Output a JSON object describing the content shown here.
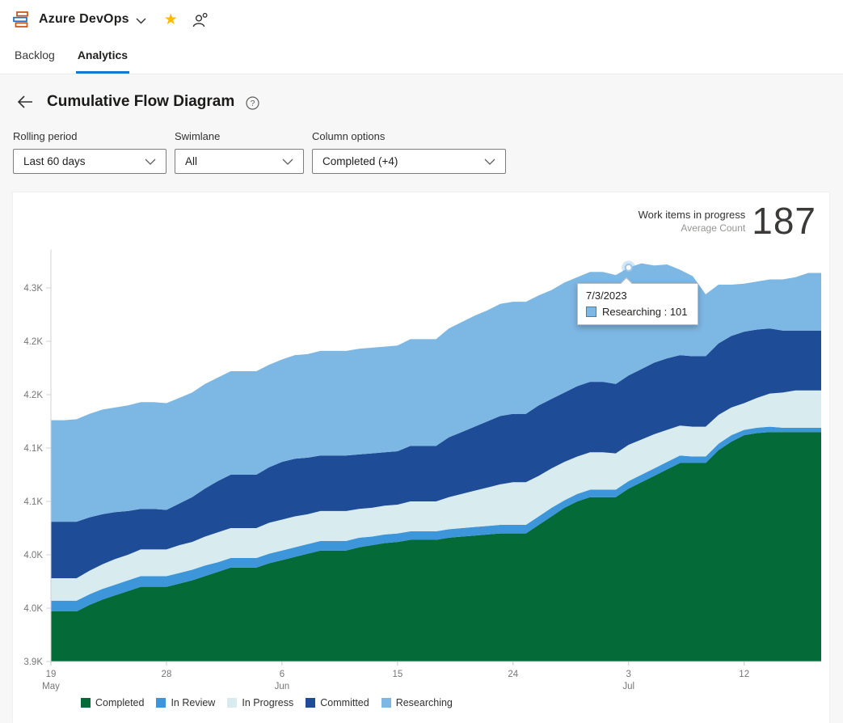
{
  "header": {
    "product": "Azure DevOps"
  },
  "tabs": {
    "backlog": "Backlog",
    "analytics": "Analytics"
  },
  "page": {
    "title": "Cumulative Flow Diagram"
  },
  "filters": {
    "rolling_period": {
      "label": "Rolling period",
      "value": "Last 60 days"
    },
    "swimlane": {
      "label": "Swimlane",
      "value": "All"
    },
    "column_options": {
      "label": "Column options",
      "value": "Completed (+4)"
    }
  },
  "stats": {
    "title": "Work items in progress",
    "subtitle": "Average Count",
    "value": "187"
  },
  "tooltip": {
    "date": "7/3/2023",
    "series": "Researching",
    "value": 101,
    "label": "Researching : 101"
  },
  "legend": [
    {
      "label": "Completed",
      "color": "#046a38"
    },
    {
      "label": "In Review",
      "color": "#3c96d9"
    },
    {
      "label": "In Progress",
      "color": "#d8ebee"
    },
    {
      "label": "Committed",
      "color": "#1e4c96"
    },
    {
      "label": "Researching",
      "color": "#7db7e4"
    }
  ],
  "chart_data": {
    "type": "area",
    "stacked": true,
    "grid": false,
    "legend_position": "bottom",
    "title": "Cumulative Flow Diagram",
    "xlabel": "",
    "ylabel": "",
    "dates": [
      "5/19",
      "5/20",
      "5/21",
      "5/22",
      "5/23",
      "5/24",
      "5/25",
      "5/26",
      "5/27",
      "5/28",
      "5/29",
      "5/30",
      "5/31",
      "6/1",
      "6/2",
      "6/3",
      "6/4",
      "6/5",
      "6/6",
      "6/7",
      "6/8",
      "6/9",
      "6/10",
      "6/11",
      "6/12",
      "6/13",
      "6/14",
      "6/15",
      "6/16",
      "6/17",
      "6/18",
      "6/19",
      "6/20",
      "6/21",
      "6/22",
      "6/23",
      "6/24",
      "6/25",
      "6/26",
      "6/27",
      "6/28",
      "6/29",
      "6/30",
      "7/1",
      "7/2",
      "7/3",
      "7/4",
      "7/5",
      "7/6",
      "7/7",
      "7/8",
      "7/9",
      "7/10",
      "7/11",
      "7/12",
      "7/13",
      "7/14",
      "7/15",
      "7/16",
      "7/17",
      "7/18"
    ],
    "series": [
      {
        "name": "Completed",
        "color": "#046a38",
        "absolute": true,
        "values": [
          3997,
          3997,
          3997,
          4003,
          4008,
          4012,
          4016,
          4020,
          4020,
          4020,
          4023,
          4026,
          4030,
          4034,
          4038,
          4038,
          4038,
          4042,
          4045,
          4048,
          4051,
          4054,
          4054,
          4054,
          4057,
          4059,
          4061,
          4062,
          4064,
          4064,
          4064,
          4066,
          4067,
          4068,
          4069,
          4070,
          4070,
          4070,
          4078,
          4086,
          4094,
          4100,
          4104,
          4104,
          4104,
          4112,
          4118,
          4124,
          4130,
          4136,
          4136,
          4136,
          4148,
          4156,
          4162,
          4164,
          4165,
          4165,
          4165,
          4165,
          4165
        ]
      },
      {
        "name": "In Review",
        "color": "#3c96d9",
        "absolute": false,
        "values": [
          10,
          10,
          10,
          10,
          10,
          10,
          10,
          10,
          10,
          10,
          10,
          10,
          10,
          9,
          9,
          9,
          9,
          9,
          9,
          9,
          9,
          9,
          9,
          9,
          9,
          8,
          8,
          8,
          8,
          8,
          8,
          8,
          8,
          8,
          8,
          8,
          8,
          8,
          8,
          8,
          7,
          7,
          7,
          7,
          7,
          7,
          7,
          7,
          7,
          7,
          6,
          6,
          6,
          6,
          5,
          5,
          5,
          4,
          4,
          4,
          4
        ]
      },
      {
        "name": "In Progress",
        "color": "#d8ebee",
        "absolute": false,
        "values": [
          21,
          21,
          21,
          22,
          23,
          24,
          24,
          25,
          25,
          25,
          26,
          26,
          27,
          28,
          28,
          28,
          28,
          29,
          29,
          29,
          28,
          28,
          28,
          28,
          27,
          27,
          27,
          27,
          28,
          28,
          28,
          30,
          32,
          34,
          36,
          38,
          40,
          40,
          38,
          37,
          36,
          35,
          35,
          35,
          34,
          34,
          33,
          32,
          30,
          28,
          28,
          28,
          27,
          26,
          25,
          28,
          31,
          33,
          35,
          35,
          35
        ]
      },
      {
        "name": "Committed",
        "color": "#1e4c96",
        "absolute": false,
        "values": [
          53,
          53,
          53,
          50,
          47,
          44,
          41,
          38,
          38,
          37,
          39,
          42,
          45,
          48,
          50,
          50,
          50,
          52,
          54,
          54,
          53,
          52,
          52,
          52,
          51,
          51,
          50,
          50,
          52,
          52,
          52,
          56,
          58,
          60,
          62,
          64,
          64,
          64,
          66,
          65,
          65,
          66,
          66,
          66,
          65,
          65,
          66,
          67,
          67,
          66,
          66,
          66,
          67,
          67,
          67,
          64,
          61,
          58,
          56,
          56,
          56
        ]
      },
      {
        "name": "Researching",
        "color": "#7db7e4",
        "absolute": false,
        "values": [
          95,
          95,
          96,
          97,
          98,
          98,
          99,
          100,
          100,
          100,
          99,
          98,
          98,
          97,
          97,
          97,
          97,
          96,
          96,
          97,
          97,
          98,
          98,
          98,
          99,
          99,
          99,
          99,
          100,
          100,
          100,
          102,
          103,
          104,
          104,
          105,
          105,
          105,
          103,
          102,
          103,
          102,
          103,
          103,
          102,
          101,
          99,
          91,
          88,
          80,
          75,
          58,
          55,
          48,
          45,
          45,
          46,
          48,
          50,
          54,
          54
        ]
      }
    ],
    "y_axis": {
      "min": 3950,
      "max": 4336,
      "ticks": [
        {
          "v": 3950,
          "label": "3.9K"
        },
        {
          "v": 4000,
          "label": "4.0K"
        },
        {
          "v": 4050,
          "label": "4.0K"
        },
        {
          "v": 4100,
          "label": "4.1K"
        },
        {
          "v": 4150,
          "label": "4.1K"
        },
        {
          "v": 4200,
          "label": "4.2K"
        },
        {
          "v": 4250,
          "label": "4.2K"
        },
        {
          "v": 4300,
          "label": "4.3K"
        }
      ]
    },
    "x_axis": {
      "ticks": [
        {
          "i": 0,
          "label": "19",
          "month": "May"
        },
        {
          "i": 9,
          "label": "28"
        },
        {
          "i": 18,
          "label": "6",
          "month": "Jun"
        },
        {
          "i": 27,
          "label": "15"
        },
        {
          "i": 36,
          "label": "24"
        },
        {
          "i": 45,
          "label": "3",
          "month": "Jul"
        },
        {
          "i": 54,
          "label": "12"
        }
      ]
    },
    "marker": {
      "index": 45,
      "series": "Researching"
    }
  }
}
